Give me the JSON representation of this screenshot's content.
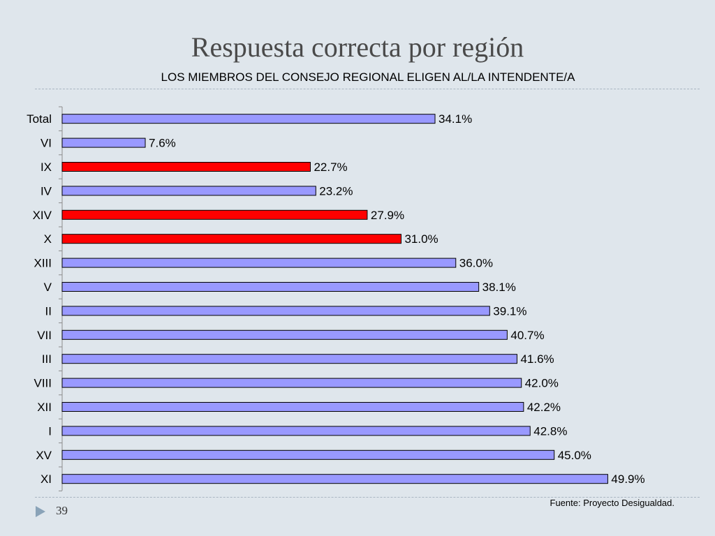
{
  "slide": {
    "title": "Respuesta correcta por región",
    "page_number": "39",
    "source": "Fuente: Proyecto Desigualdad."
  },
  "colors": {
    "default_bar": "#9999ff",
    "highlight_bar": "#ff0000",
    "bar_stroke": "#000000"
  },
  "icons": {
    "page_marker": "triangle-right-icon"
  },
  "chart_data": {
    "type": "bar",
    "orientation": "horizontal",
    "title": "LOS MIEMBROS DEL CONSEJO REGIONAL ELIGEN AL/LA INTENDENTE/A",
    "xlabel": "",
    "ylabel": "",
    "xlim": [
      0,
      50
    ],
    "grid": false,
    "categories": [
      "Total",
      "VI",
      "IX",
      "IV",
      "XIV",
      "X",
      "XIII",
      "V",
      "II",
      "VII",
      "III",
      "VIII",
      "XII",
      "I",
      "XV",
      "XI"
    ],
    "values": [
      34.1,
      7.6,
      22.7,
      23.2,
      27.9,
      31.0,
      36.0,
      38.1,
      39.1,
      40.7,
      41.6,
      42.0,
      42.2,
      42.8,
      45.0,
      49.9
    ],
    "value_labels": [
      "34.1%",
      "7.6%",
      "22.7%",
      "23.2%",
      "27.9%",
      "31.0%",
      "36.0%",
      "38.1%",
      "39.1%",
      "40.7%",
      "41.6%",
      "42.0%",
      "42.2%",
      "42.8%",
      "45.0%",
      "49.9%"
    ],
    "highlighted": [
      "IX",
      "XIV",
      "X"
    ]
  }
}
